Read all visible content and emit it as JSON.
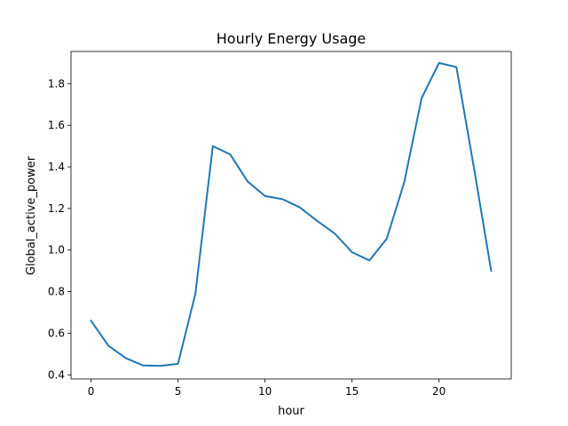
{
  "chart_data": {
    "type": "line",
    "title": "Hourly Energy Usage",
    "xlabel": "hour",
    "ylabel": "Global_active_power",
    "xlim": [
      -1.15,
      24.15
    ],
    "ylim": [
      0.38,
      1.955
    ],
    "xticks": [
      0,
      5,
      10,
      15,
      20
    ],
    "xtick_labels": [
      "0",
      "5",
      "10",
      "15",
      "20"
    ],
    "yticks": [
      0.4,
      0.6,
      0.8,
      1.0,
      1.2,
      1.4,
      1.6,
      1.8
    ],
    "ytick_labels": [
      "0.4",
      "0.6",
      "0.8",
      "1.0",
      "1.2",
      "1.4",
      "1.6",
      "1.8"
    ],
    "grid": false,
    "series": [
      {
        "color": "#1f77b4",
        "x": [
          0,
          1,
          2,
          3,
          4,
          5,
          6,
          7,
          8,
          9,
          10,
          11,
          12,
          13,
          14,
          15,
          16,
          17,
          18,
          19,
          20,
          21,
          22,
          23
        ],
        "values": [
          0.66,
          0.54,
          0.48,
          0.445,
          0.443,
          0.453,
          0.79,
          1.5,
          1.46,
          1.33,
          1.26,
          1.245,
          1.205,
          1.14,
          1.08,
          0.99,
          0.95,
          1.055,
          1.325,
          1.73,
          1.9,
          1.88,
          1.4,
          0.9
        ]
      }
    ]
  }
}
